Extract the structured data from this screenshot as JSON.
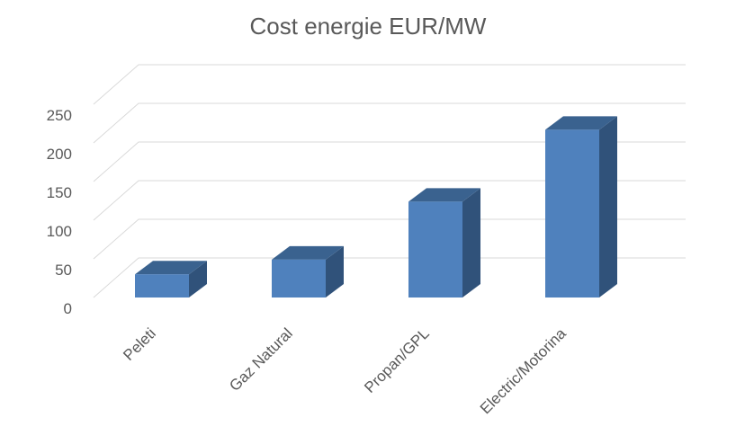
{
  "chart_data": {
    "type": "bar",
    "title": "Cost energie EUR/MW",
    "categories": [
      "Peleti",
      "Gaz Natural",
      "Propan/GPL",
      "Electric/Motorina"
    ],
    "values": [
      30,
      49,
      124,
      217
    ],
    "xlabel": "",
    "ylabel": "",
    "ylim": [
      0,
      250
    ],
    "yticks": [
      0,
      50,
      100,
      150,
      200,
      250
    ],
    "grid": true,
    "legend": "none",
    "style": "3d",
    "colors": {
      "bar_front": "#4f81bd",
      "bar_side": "#30527a",
      "bar_top": "#3a628f",
      "gridline": "#d9d9d9",
      "text": "#595959"
    }
  }
}
